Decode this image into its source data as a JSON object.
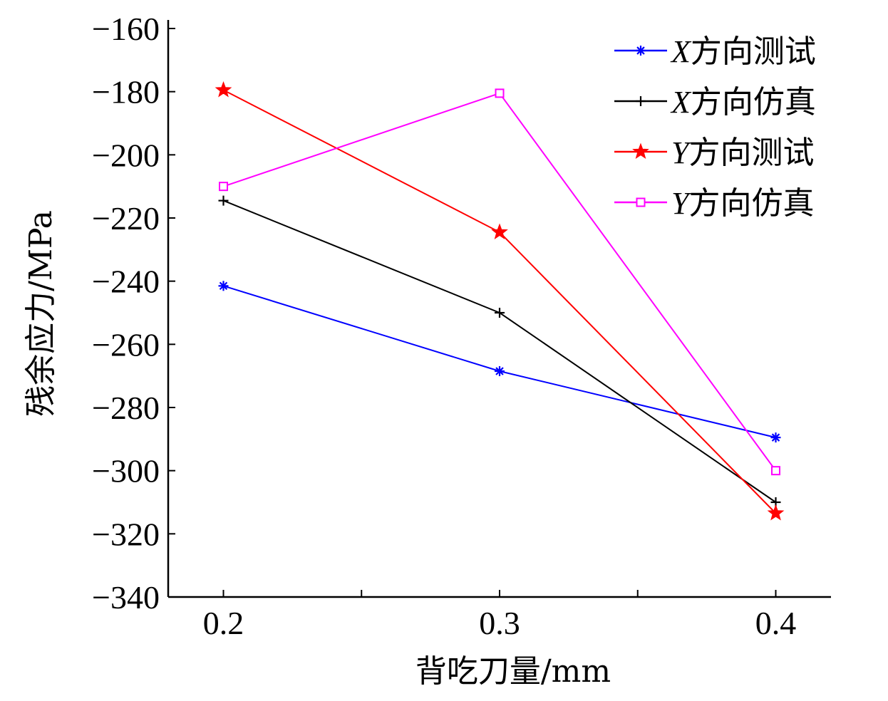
{
  "chart_data": {
    "type": "line",
    "title": "",
    "xlabel": "背吃刀量/mm",
    "ylabel": "残余应力/MPa",
    "x": [
      0.2,
      0.3,
      0.4
    ],
    "x_tick_labels": [
      "0.2",
      "0.3",
      "0.4"
    ],
    "xlim": [
      0.18,
      0.42
    ],
    "ylim": [
      -340,
      -160
    ],
    "y_ticks": [
      -160,
      -180,
      -200,
      -220,
      -240,
      -260,
      -280,
      -300,
      -320,
      -340
    ],
    "y_tick_labels": [
      "−160",
      "−180",
      "−200",
      "−220",
      "−240",
      "−260",
      "−280",
      "−300",
      "−320",
      "−340"
    ],
    "grid": false,
    "legend_position": "top-right",
    "series": [
      {
        "name": "X方向测试",
        "name_var": "X",
        "name_rest": "方向测试",
        "color": "#0000ff",
        "marker": "asterisk",
        "values": [
          -241.5,
          -268.5,
          -289.5
        ]
      },
      {
        "name": "X方向仿真",
        "name_var": "X",
        "name_rest": "方向仿真",
        "color": "#000000",
        "marker": "plus",
        "values": [
          -214.5,
          -250,
          -310
        ]
      },
      {
        "name": "Y方向测试",
        "name_var": "Y",
        "name_rest": "方向测试",
        "color": "#ff0000",
        "marker": "star",
        "values": [
          -179.5,
          -224.5,
          -313.5
        ]
      },
      {
        "name": "Y方向仿真",
        "name_var": "Y",
        "name_rest": "方向仿真",
        "color": "#ff00ff",
        "marker": "square",
        "values": [
          -210,
          -180.5,
          -300
        ]
      }
    ]
  }
}
